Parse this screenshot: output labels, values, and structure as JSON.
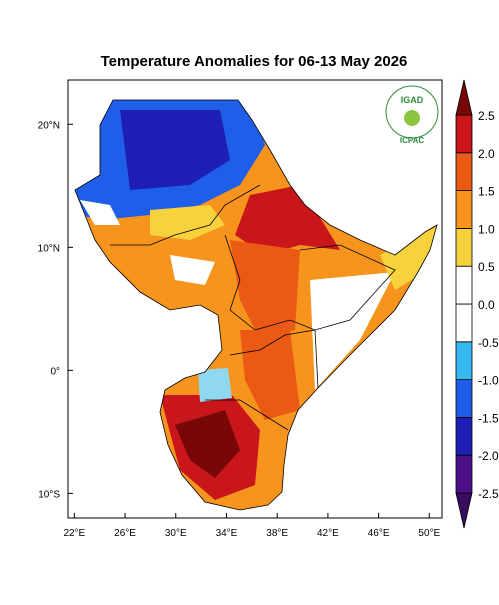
{
  "title": "Temperature Anomalies for 06-13 May 2026",
  "map": {
    "xlim": [
      21.5,
      51
    ],
    "ylim": [
      -12,
      23.6
    ],
    "xticks": [
      {
        "value": 22,
        "label": "22°E"
      },
      {
        "value": 26,
        "label": "26°E"
      },
      {
        "value": 30,
        "label": "30°E"
      },
      {
        "value": 34,
        "label": "34°E"
      },
      {
        "value": 38,
        "label": "38°E"
      },
      {
        "value": 42,
        "label": "42°E"
      },
      {
        "value": 46,
        "label": "46°E"
      },
      {
        "value": 50,
        "label": "50°E"
      }
    ],
    "yticks": [
      {
        "value": 20,
        "label": "20°N"
      },
      {
        "value": 10,
        "label": "10°N"
      },
      {
        "value": 0,
        "label": "0°"
      },
      {
        "value": -10,
        "label": "10°S"
      }
    ]
  },
  "colorbar": {
    "ticks": [
      -2.5,
      {
        "value": -2,
        "label": "-2.0"
      },
      -1.5,
      {
        "value": -1,
        "label": "-1.0"
      },
      -0.5,
      {
        "value": 0,
        "label": "0.0"
      },
      0.5,
      {
        "value": 1,
        "label": "1.0"
      },
      1.5,
      {
        "value": 2,
        "label": "2.0"
      },
      2.5
    ],
    "colors": [
      "#3a0a5e",
      "#4b108a",
      "#1e1eb4",
      "#1f5ee8",
      "#38b8f0",
      "#ffffff",
      "#ffffff",
      "#f8d23c",
      "#f7941d",
      "#ea5a14",
      "#c8161a",
      "#780808"
    ]
  },
  "logo": {
    "top": "IGAD",
    "bottom": "ICPAC"
  }
}
